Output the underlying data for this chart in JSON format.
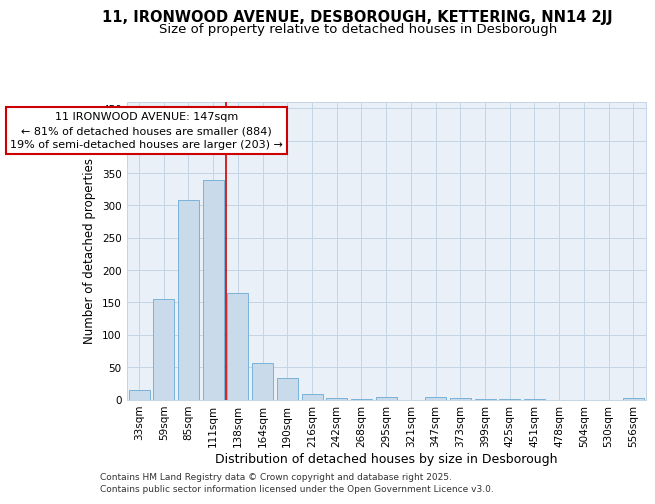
{
  "title": "11, IRONWOOD AVENUE, DESBOROUGH, KETTERING, NN14 2JJ",
  "subtitle": "Size of property relative to detached houses in Desborough",
  "xlabel": "Distribution of detached houses by size in Desborough",
  "ylabel": "Number of detached properties",
  "categories": [
    "33sqm",
    "59sqm",
    "85sqm",
    "111sqm",
    "138sqm",
    "164sqm",
    "190sqm",
    "216sqm",
    "242sqm",
    "268sqm",
    "295sqm",
    "321sqm",
    "347sqm",
    "373sqm",
    "399sqm",
    "425sqm",
    "451sqm",
    "478sqm",
    "504sqm",
    "530sqm",
    "556sqm"
  ],
  "values": [
    15,
    155,
    308,
    340,
    165,
    57,
    33,
    9,
    3,
    1,
    4,
    0,
    4,
    2,
    1,
    1,
    1,
    0,
    0,
    0,
    2
  ],
  "bar_color": "#c9daea",
  "bar_edge_color": "#6aaad4",
  "vline_x_idx": 3.5,
  "annotation_text_line1": "11 IRONWOOD AVENUE: 147sqm",
  "annotation_text_line2": "← 81% of detached houses are smaller (884)",
  "annotation_text_line3": "19% of semi-detached houses are larger (203) →",
  "annotation_box_color": "#ffffff",
  "annotation_box_edge": "#cc0000",
  "vline_color": "#cc0000",
  "grid_color": "#c5d5e5",
  "background_color": "#eaf0f8",
  "ylim": [
    0,
    460
  ],
  "yticks": [
    0,
    50,
    100,
    150,
    200,
    250,
    300,
    350,
    400,
    450
  ],
  "footer_line1": "Contains HM Land Registry data © Crown copyright and database right 2025.",
  "footer_line2": "Contains public sector information licensed under the Open Government Licence v3.0.",
  "title_fontsize": 10.5,
  "subtitle_fontsize": 9.5,
  "xlabel_fontsize": 9,
  "ylabel_fontsize": 8.5,
  "tick_fontsize": 7.5,
  "annot_fontsize": 8,
  "footer_fontsize": 6.5
}
